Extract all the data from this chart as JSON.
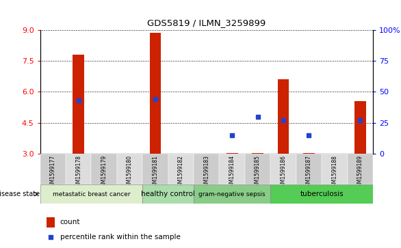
{
  "title": "GDS5819 / ILMN_3259899",
  "samples": [
    "GSM1599177",
    "GSM1599178",
    "GSM1599179",
    "GSM1599180",
    "GSM1599181",
    "GSM1599182",
    "GSM1599183",
    "GSM1599184",
    "GSM1599185",
    "GSM1599186",
    "GSM1599187",
    "GSM1599188",
    "GSM1599189"
  ],
  "counts": [
    3.0,
    7.8,
    3.0,
    3.0,
    8.85,
    3.0,
    3.0,
    3.05,
    3.05,
    6.6,
    3.05,
    3.0,
    5.55
  ],
  "percentiles": [
    null,
    43.0,
    null,
    null,
    44.0,
    null,
    null,
    15.0,
    30.0,
    27.0,
    15.0,
    null,
    27.0
  ],
  "ylim_left": [
    3,
    9
  ],
  "ylim_right": [
    0,
    100
  ],
  "yticks_left": [
    3,
    4.5,
    6,
    7.5,
    9
  ],
  "yticks_right": [
    0,
    25,
    50,
    75,
    100
  ],
  "bar_color": "#cc2200",
  "dot_color": "#2244cc",
  "disease_groups": [
    {
      "label": "metastatic breast cancer",
      "start": 0,
      "end": 3,
      "color": "#ddeecc"
    },
    {
      "label": "healthy control",
      "start": 4,
      "end": 5,
      "color": "#aaddaa"
    },
    {
      "label": "gram-negative sepsis",
      "start": 6,
      "end": 8,
      "color": "#88cc88"
    },
    {
      "label": "tuberculosis",
      "start": 9,
      "end": 12,
      "color": "#55cc55"
    }
  ],
  "disease_label": "disease state",
  "legend_count_label": "count",
  "legend_percentile_label": "percentile rank within the sample",
  "bar_width": 0.45,
  "background_color": "#ffffff"
}
